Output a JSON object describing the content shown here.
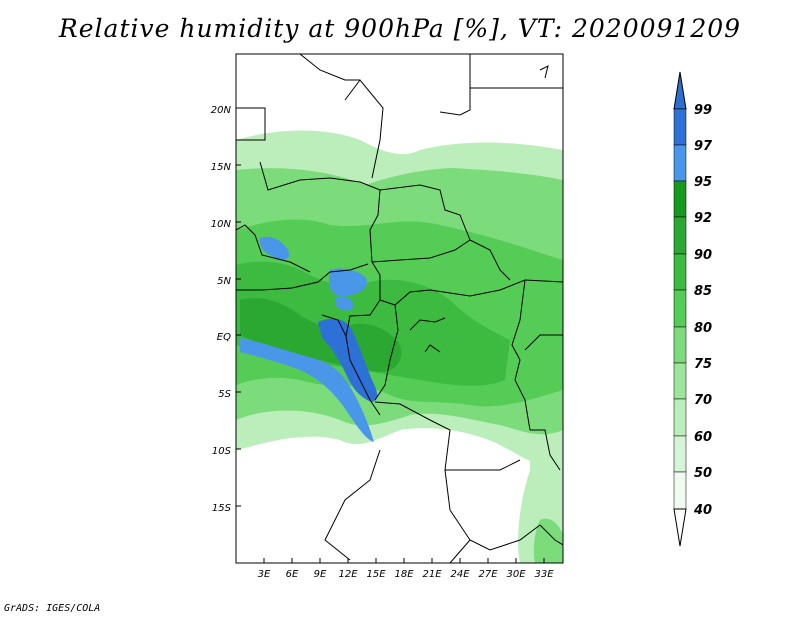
{
  "title": "Relative humidity at 900hPa [%], VT: 2020091209",
  "credit": "GrADS: IGES/COLA",
  "map": {
    "lat_labels": [
      "20N",
      "15N",
      "10N",
      "5N",
      "EQ",
      "5S",
      "10S",
      "15S"
    ],
    "lon_labels": [
      "3E",
      "6E",
      "9E",
      "12E",
      "15E",
      "18E",
      "21E",
      "24E",
      "27E",
      "30E",
      "33E"
    ]
  },
  "colorbar": {
    "levels": [
      "99",
      "97",
      "95",
      "92",
      "90",
      "85",
      "80",
      "75",
      "70",
      "60",
      "50",
      "40"
    ],
    "colors": {
      "above_99": "#2b6fd0",
      "97_99": "#2d71d6",
      "95_97": "#4a97ea",
      "92_95": "#169a1e",
      "90_92": "#2aa832",
      "85_90": "#3cbb40",
      "80_85": "#55cc55",
      "75_80": "#7cdc7c",
      "70_75": "#9de59d",
      "60_70": "#bbeebb",
      "50_60": "#d6f5d6",
      "40_50": "#eefbee",
      "below_40": "#ffffff"
    }
  }
}
